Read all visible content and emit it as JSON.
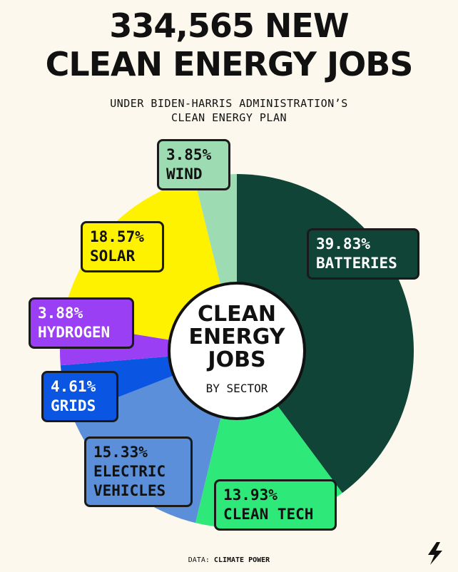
{
  "chart_data": {
    "type": "pie",
    "title": [
      "334,565 NEW",
      "CLEAN ENERGY JOBS"
    ],
    "subtitle": [
      "UNDER BIDEN-HARRIS ADMINISTRATION’S",
      "CLEAN ENERGY PLAN"
    ],
    "center_label": [
      "CLEAN",
      "ENERGY",
      "JOBS"
    ],
    "center_sublabel": "BY SECTOR",
    "categories": [
      "BATTERIES",
      "CLEAN TECH",
      "ELECTRIC VEHICLES",
      "GRIDS",
      "HYDROGEN",
      "SOLAR",
      "WIND"
    ],
    "values": [
      39.83,
      13.93,
      15.33,
      4.61,
      3.88,
      18.57,
      3.85
    ],
    "value_labels": [
      "39.83%",
      "13.93%",
      "15.33%",
      "4.61%",
      "3.88%",
      "18.57%",
      "3.85%"
    ],
    "colors": [
      "#0f4436",
      "#2fe87a",
      "#5b8fd9",
      "#0b55e3",
      "#9b3ff5",
      "#fff200",
      "#9ddcb2"
    ],
    "source_label": "DATA:",
    "source": "CLIMATE POWER"
  }
}
